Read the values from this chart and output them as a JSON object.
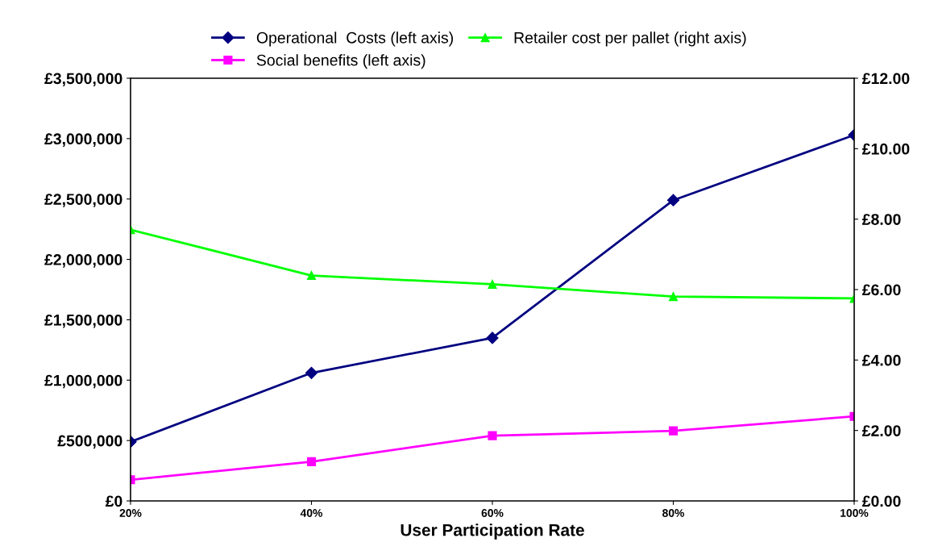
{
  "chart_data": {
    "type": "line",
    "xlabel": "User Participation Rate",
    "categories": [
      "20%",
      "40%",
      "60%",
      "80%",
      "100%"
    ],
    "series": [
      {
        "name": "Operational  Costs (left axis)",
        "color": "#000080",
        "marker": "diamond",
        "values": [
          490000,
          1060000,
          1350000,
          2490000,
          3030000
        ]
      },
      {
        "name": "Social benefits (left axis)",
        "color": "#ff00ff",
        "marker": "square",
        "values": [
          175000,
          325000,
          540000,
          580000,
          700000
        ]
      },
      {
        "name": "Retailer cost per pallet (right axis)",
        "color": "#00ff00",
        "marker": "triangle",
        "axis": "y2",
        "values": [
          7.7,
          6.4,
          6.15,
          5.8,
          5.75
        ]
      }
    ],
    "ylim": [
      0,
      3500000
    ],
    "yticks": [
      {
        "value": 0,
        "label": "£0"
      },
      {
        "value": 500000,
        "label": "£500,000"
      },
      {
        "value": 1000000,
        "label": "£1,000,000"
      },
      {
        "value": 1500000,
        "label": "£1,500,000"
      },
      {
        "value": 2000000,
        "label": "£2,000,000"
      },
      {
        "value": 2500000,
        "label": "£2,500,000"
      },
      {
        "value": 3000000,
        "label": "£3,000,000"
      },
      {
        "value": 3500000,
        "label": "£3,500,000"
      }
    ],
    "y2lim": [
      0,
      12
    ],
    "y2ticks": [
      {
        "value": 0,
        "label": "£0.00"
      },
      {
        "value": 2,
        "label": "£2.00"
      },
      {
        "value": 4,
        "label": "£4.00"
      },
      {
        "value": 6,
        "label": "£6.00"
      },
      {
        "value": 8,
        "label": "£8.00"
      },
      {
        "value": 10,
        "label": "£10.00"
      },
      {
        "value": 12,
        "label": "£12.00"
      }
    ],
    "grid": false,
    "legend": "top",
    "line_style": "solid"
  }
}
